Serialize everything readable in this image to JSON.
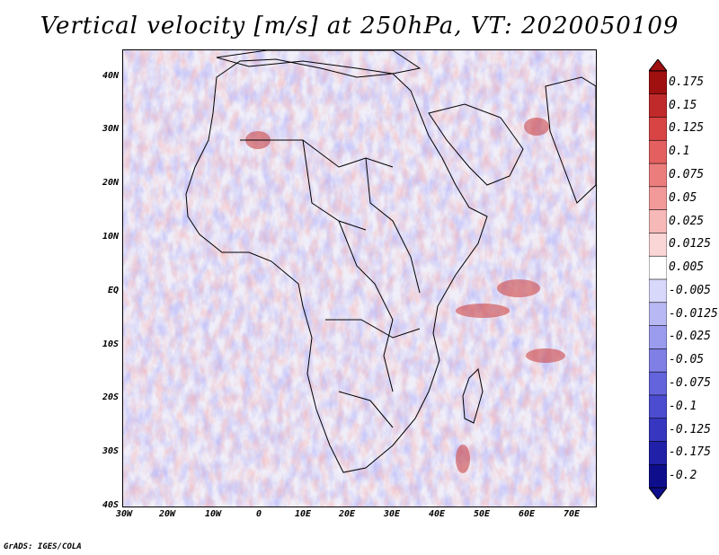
{
  "title": "Vertical velocity [m/s] at 250hPa, VT: 2020050109",
  "footer": "GrADS: IGES/COLA",
  "latitude_labels": [
    "40N",
    "30N",
    "20N",
    "10N",
    "EQ",
    "10S",
    "20S",
    "30S",
    "40S"
  ],
  "longitude_labels": [
    "30W",
    "20W",
    "10W",
    "0",
    "10E",
    "20E",
    "30E",
    "40E",
    "50E",
    "60E",
    "70E"
  ],
  "colorbar": {
    "levels": [
      "0.175",
      "0.15",
      "0.125",
      "0.1",
      "0.075",
      "0.05",
      "0.025",
      "0.0125",
      "0.005",
      "-0.005",
      "-0.0125",
      "-0.025",
      "-0.05",
      "-0.075",
      "-0.1",
      "-0.125",
      "-0.175",
      "-0.2"
    ],
    "colors": [
      "#a01010",
      "#c02a2a",
      "#d84444",
      "#e46060",
      "#ec7d7d",
      "#f29a9a",
      "#f7b8b8",
      "#fbd6d6",
      "#ffffff",
      "#d8d8fa",
      "#b8b8f4",
      "#9c9cee",
      "#7f7fe6",
      "#6464dc",
      "#4c4cd0",
      "#3636c0",
      "#2020a8",
      "#0e0e8c"
    ]
  },
  "map": {
    "region": "Africa",
    "lon_range": [
      "30W",
      "75E"
    ],
    "lat_range": [
      "40S",
      "45N"
    ],
    "ocean_tint": "#efeff8",
    "contour_color": "#000000"
  }
}
